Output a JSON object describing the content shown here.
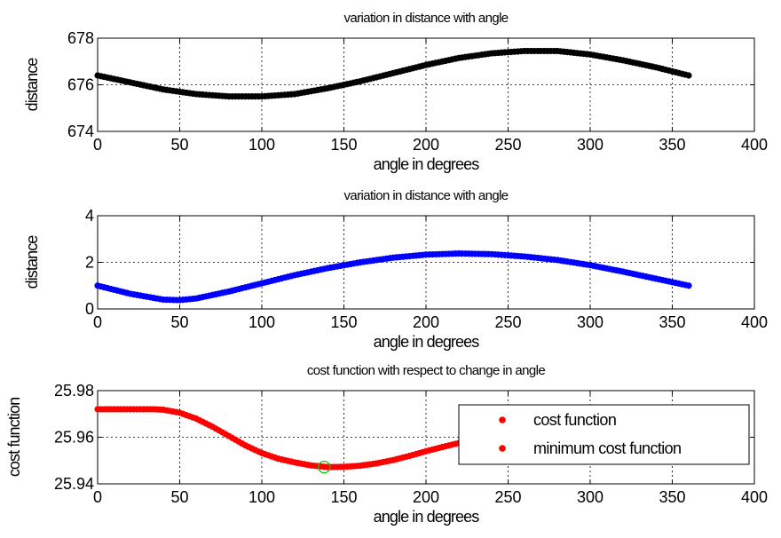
{
  "chart_data": [
    {
      "type": "scatter",
      "title": "variation in distance with angle",
      "xlabel": "angle in degrees",
      "ylabel": "distance",
      "xlim": [
        0,
        400
      ],
      "ylim": [
        674,
        678
      ],
      "xticks": [
        "0",
        "50",
        "100",
        "150",
        "200",
        "250",
        "300",
        "350",
        "400"
      ],
      "yticks": [
        "674",
        "676",
        "678"
      ],
      "grid": true,
      "color": "#000000",
      "series": [
        {
          "x": [
            0,
            20,
            40,
            60,
            80,
            100,
            120,
            140,
            160,
            180,
            200,
            220,
            240,
            260,
            280,
            300,
            320,
            340,
            360
          ],
          "y": [
            676.4,
            676.1,
            675.8,
            675.6,
            675.5,
            675.5,
            675.6,
            675.85,
            676.15,
            676.5,
            676.85,
            677.15,
            677.35,
            677.45,
            677.45,
            677.3,
            677.05,
            676.75,
            676.4
          ]
        }
      ]
    },
    {
      "type": "scatter",
      "title": "variation in distance with angle",
      "xlabel": "angle in degrees",
      "ylabel": "distance",
      "xlim": [
        0,
        400
      ],
      "ylim": [
        0,
        4
      ],
      "xticks": [
        "0",
        "50",
        "100",
        "150",
        "200",
        "250",
        "300",
        "350",
        "400"
      ],
      "yticks": [
        "0",
        "2",
        "4"
      ],
      "grid": true,
      "color": "#0000ff",
      "series": [
        {
          "x": [
            0,
            20,
            40,
            50,
            60,
            80,
            100,
            120,
            140,
            160,
            180,
            200,
            220,
            240,
            260,
            280,
            300,
            320,
            340,
            360
          ],
          "y": [
            1.0,
            0.65,
            0.4,
            0.38,
            0.45,
            0.75,
            1.1,
            1.45,
            1.75,
            2.0,
            2.2,
            2.33,
            2.38,
            2.35,
            2.25,
            2.1,
            1.88,
            1.6,
            1.3,
            1.0
          ]
        }
      ]
    },
    {
      "type": "scatter",
      "title": "cost function with respect to change in angle",
      "xlabel": "angle in degrees",
      "ylabel": "cost function",
      "xlim": [
        0,
        400
      ],
      "ylim": [
        25.94,
        25.98
      ],
      "xticks": [
        "0",
        "50",
        "100",
        "150",
        "200",
        "250",
        "300",
        "350",
        "400"
      ],
      "yticks": [
        "25.94",
        "25.96",
        "25.98"
      ],
      "grid": true,
      "legend": {
        "placement": "top-right",
        "entries": [
          "cost function",
          "minimum cost function"
        ]
      },
      "series": [
        {
          "name": "cost function",
          "color": "#ff0000",
          "x": [
            0,
            10,
            20,
            30,
            35,
            40,
            50,
            60,
            70,
            80,
            90,
            100,
            110,
            120,
            130,
            140,
            150,
            160,
            170,
            180,
            190,
            200,
            210,
            220,
            230,
            240
          ],
          "y": [
            25.972,
            25.972,
            25.972,
            25.972,
            25.972,
            25.9718,
            25.9705,
            25.968,
            25.9645,
            25.9605,
            25.9565,
            25.9532,
            25.9508,
            25.9492,
            25.9479,
            25.9472,
            25.9473,
            25.9478,
            25.9488,
            25.9502,
            25.952,
            25.954,
            25.9558,
            25.9575,
            25.9592,
            25.961
          ]
        },
        {
          "name": "minimum cost function",
          "color": "#00cc00",
          "x": [
            138
          ],
          "y": [
            25.9472
          ]
        }
      ]
    }
  ]
}
